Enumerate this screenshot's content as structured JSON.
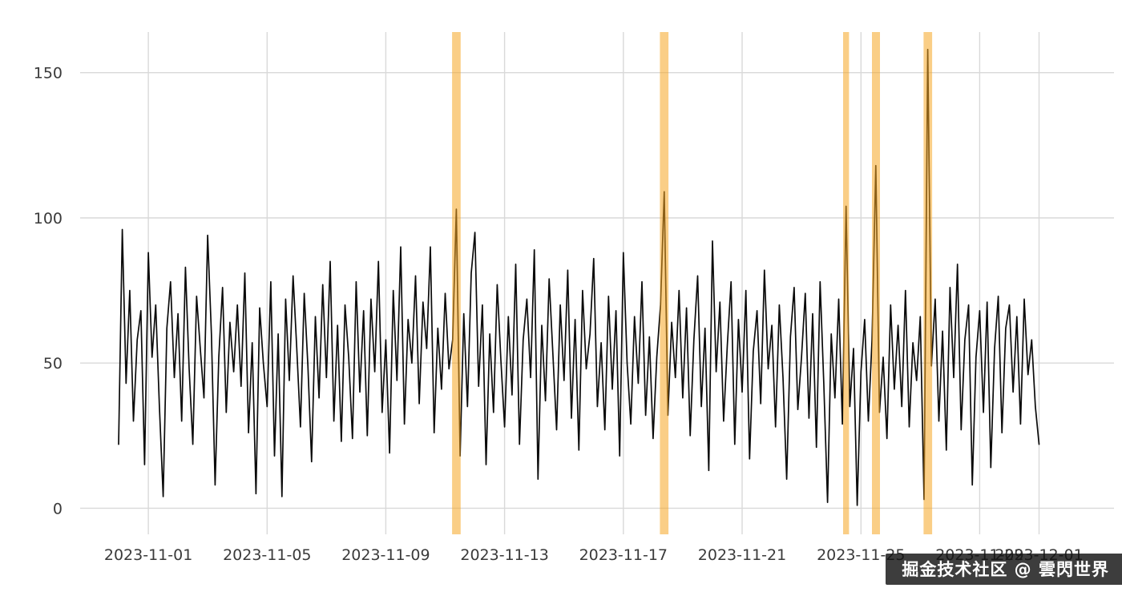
{
  "watermark": {
    "text": "掘金技术社区 @ 雲閃世界",
    "bg_color": "rgba(18,18,18,0.82)",
    "text_color": "#ffffff"
  },
  "chart_data": {
    "type": "line",
    "title": "",
    "xlabel": "",
    "ylabel": "",
    "legend": "none",
    "grid": "on",
    "background_color": "#ffffff",
    "grid_color": "#d9d9d9",
    "line_color": "#0a0a0a",
    "line_width": 1.7,
    "band_color": "#f5a623",
    "band_opacity": 0.55,
    "x_start": "2023-10-31T00:00",
    "x_interval_hours": 3,
    "x_total_days": 31,
    "ylim": [
      -9,
      164
    ],
    "y_ticks": [
      {
        "label": "0",
        "value": 0
      },
      {
        "label": "50",
        "value": 50
      },
      {
        "label": "100",
        "value": 100
      },
      {
        "label": "150",
        "value": 150
      }
    ],
    "x_ticks": [
      {
        "label": "2023-11-01",
        "day": 1
      },
      {
        "label": "2023-11-05",
        "day": 5
      },
      {
        "label": "2023-11-09",
        "day": 9
      },
      {
        "label": "2023-11-13",
        "day": 13
      },
      {
        "label": "2023-11-17",
        "day": 17
      },
      {
        "label": "2023-11-21",
        "day": 21
      },
      {
        "label": "2023-11-25",
        "day": 25
      },
      {
        "label": "2023-11-29",
        "day": 29
      },
      {
        "label": "2023-12-01",
        "day": 31
      }
    ],
    "highlight_bands": [
      {
        "start_day": 11.23,
        "end_day": 11.52
      },
      {
        "start_day": 18.23,
        "end_day": 18.52
      },
      {
        "start_day": 24.4,
        "end_day": 24.6
      },
      {
        "start_day": 25.37,
        "end_day": 25.64
      },
      {
        "start_day": 27.11,
        "end_day": 27.4
      }
    ],
    "values": [
      22,
      96,
      43,
      75,
      30,
      58,
      68,
      15,
      88,
      52,
      70,
      35,
      4,
      62,
      78,
      45,
      67,
      30,
      83,
      48,
      22,
      73,
      55,
      38,
      94,
      60,
      8,
      52,
      76,
      33,
      64,
      47,
      70,
      42,
      81,
      26,
      57,
      5,
      69,
      50,
      35,
      78,
      18,
      60,
      4,
      72,
      44,
      80,
      55,
      28,
      74,
      49,
      16,
      66,
      38,
      77,
      45,
      85,
      30,
      63,
      23,
      70,
      52,
      24,
      78,
      40,
      68,
      25,
      72,
      47,
      85,
      33,
      58,
      19,
      75,
      44,
      90,
      29,
      65,
      50,
      80,
      36,
      71,
      55,
      90,
      26,
      62,
      41,
      74,
      48,
      58,
      103,
      18,
      67,
      35,
      81,
      95,
      42,
      70,
      15,
      60,
      33,
      77,
      51,
      28,
      66,
      39,
      84,
      22,
      58,
      72,
      45,
      89,
      10,
      63,
      37,
      79,
      53,
      27,
      70,
      44,
      82,
      31,
      65,
      20,
      75,
      48,
      60,
      86,
      35,
      57,
      27,
      73,
      41,
      68,
      18,
      88,
      50,
      29,
      66,
      43,
      78,
      32,
      59,
      24,
      52,
      70,
      109,
      32,
      64,
      45,
      75,
      38,
      69,
      25,
      58,
      80,
      35,
      62,
      13,
      92,
      47,
      71,
      30,
      56,
      78,
      22,
      65,
      40,
      75,
      17,
      54,
      68,
      36,
      82,
      48,
      63,
      28,
      70,
      45,
      10,
      59,
      76,
      34,
      52,
      74,
      31,
      67,
      21,
      78,
      43,
      2,
      60,
      38,
      72,
      29,
      104,
      35,
      55,
      1,
      47,
      65,
      30,
      58,
      118,
      33,
      52,
      24,
      70,
      41,
      63,
      35,
      75,
      28,
      57,
      44,
      66,
      3,
      158,
      49,
      72,
      30,
      61,
      20,
      76,
      45,
      84,
      27,
      58,
      70,
      8,
      52,
      68,
      33,
      71,
      14,
      55,
      73,
      26,
      62,
      70,
      40,
      66,
      29,
      72,
      46,
      58,
      35,
      22
    ]
  }
}
